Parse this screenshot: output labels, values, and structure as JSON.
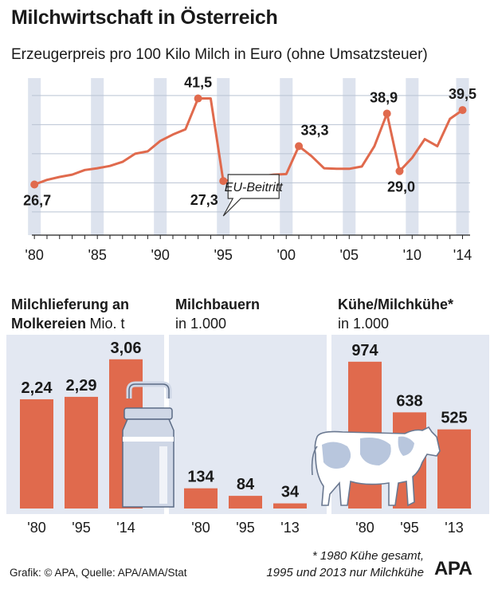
{
  "title": "Milchwirtschaft in Österreich",
  "subtitle": "Erzeugerpreis pro 100 Kilo Milch in Euro (ohne Umsatzsteuer)",
  "annotation": "EU-Beitritt",
  "colors": {
    "accent": "#e06a4d",
    "band": "#dde3ee",
    "panel": "#e3e8f2",
    "gridline": "#b9c3d3",
    "text": "#1a1a1a"
  },
  "icons": {
    "milk_can": "milk-can-icon",
    "cow": "cow-icon"
  },
  "chart_data": [
    {
      "type": "line",
      "x": [
        1980,
        1981,
        1982,
        1983,
        1984,
        1985,
        1986,
        1987,
        1988,
        1989,
        1990,
        1991,
        1992,
        1993,
        1994,
        1995,
        1996,
        1997,
        1998,
        1999,
        2000,
        2001,
        2002,
        2003,
        2004,
        2005,
        2006,
        2007,
        2008,
        2009,
        2010,
        2011,
        2012,
        2013,
        2014
      ],
      "values": [
        26.7,
        27.5,
        28.0,
        28.4,
        29.2,
        29.5,
        29.9,
        30.6,
        32.0,
        32.4,
        34.2,
        35.3,
        36.2,
        41.5,
        41.5,
        27.3,
        27.6,
        27.7,
        28.1,
        28.4,
        28.5,
        33.3,
        31.6,
        29.5,
        29.4,
        29.4,
        29.8,
        33.3,
        38.9,
        29.0,
        31.3,
        34.5,
        33.3,
        38.0,
        39.5
      ],
      "point_labels": [
        {
          "x": 1980,
          "text": "26,7"
        },
        {
          "x": 1993,
          "text": "41,5"
        },
        {
          "x": 1995,
          "text": "27,3"
        },
        {
          "x": 2001,
          "text": "33,3"
        },
        {
          "x": 2008,
          "text": "38,9"
        },
        {
          "x": 2009,
          "text": "29,0"
        },
        {
          "x": 2014,
          "text": "39,5"
        }
      ],
      "tick_labels": [
        "'80",
        "'85",
        "'90",
        "'95",
        "'00",
        "'05",
        "'10",
        "'14"
      ],
      "ticks": [
        1980,
        1985,
        1990,
        1995,
        2000,
        2005,
        2010,
        2014
      ],
      "xlim": [
        1979.8,
        2014.6
      ],
      "ylim": [
        18,
        45
      ],
      "gridlines": [
        22,
        27,
        32,
        37,
        42
      ],
      "annotation_x": 1995,
      "background": "alternating vertical bands",
      "legend": "none"
    },
    {
      "type": "bar",
      "title_line1": "Milchlieferung an",
      "title_line2_bold": "Molkereien",
      "unit": "Mio. t",
      "categories": [
        "'80",
        "'95",
        "'14"
      ],
      "values": [
        2.24,
        2.29,
        3.06
      ],
      "value_labels": [
        "2,24",
        "2,29",
        "3,06"
      ],
      "ylim": [
        0,
        3.4
      ]
    },
    {
      "type": "bar",
      "title": "Milchbauern",
      "unit": "in 1.000",
      "categories": [
        "'80",
        "'95",
        "'13"
      ],
      "values": [
        134,
        84,
        34
      ],
      "value_labels": [
        "134",
        "84",
        "34"
      ],
      "ylim": [
        0,
        1100
      ]
    },
    {
      "type": "bar",
      "title": "Kühe/Milchkühe*",
      "unit": "in 1.000",
      "categories": [
        "'80",
        "'95",
        "'13"
      ],
      "values": [
        974,
        638,
        525
      ],
      "value_labels": [
        "974",
        "638",
        "525"
      ],
      "ylim": [
        0,
        1100
      ]
    }
  ],
  "footnote_line1": "* 1980 Kühe gesamt,",
  "footnote_line2": "1995 und 2013 nur Milchkühe",
  "credit": "Grafik: © APA, Quelle: APA/AMA/Stat",
  "logo": "APA"
}
